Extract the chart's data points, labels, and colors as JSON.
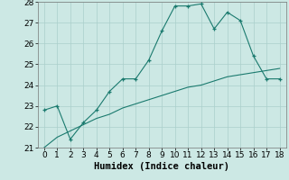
{
  "xlabel": "Humidex (Indice chaleur)",
  "x": [
    0,
    1,
    2,
    3,
    4,
    5,
    6,
    7,
    8,
    9,
    10,
    11,
    12,
    13,
    14,
    15,
    16,
    17,
    18
  ],
  "line1_y": [
    22.8,
    23.0,
    21.4,
    22.2,
    22.8,
    23.7,
    24.3,
    24.3,
    25.2,
    26.6,
    27.8,
    27.8,
    27.9,
    26.7,
    27.5,
    27.1,
    25.4,
    24.3,
    24.3
  ],
  "line2_y": [
    21.0,
    21.5,
    21.8,
    22.1,
    22.4,
    22.6,
    22.9,
    23.1,
    23.3,
    23.5,
    23.7,
    23.9,
    24.0,
    24.2,
    24.4,
    24.5,
    24.6,
    24.7,
    24.8
  ],
  "line_color": "#1a7a6e",
  "bg_color": "#cce8e4",
  "grid_color": "#aacfcb",
  "ylim": [
    21,
    28
  ],
  "yticks": [
    21,
    22,
    23,
    24,
    25,
    26,
    27,
    28
  ],
  "xlim": [
    -0.5,
    18.5
  ],
  "xticks": [
    0,
    1,
    2,
    3,
    4,
    5,
    6,
    7,
    8,
    9,
    10,
    11,
    12,
    13,
    14,
    15,
    16,
    17,
    18
  ],
  "tick_fontsize": 6.5,
  "label_fontsize": 7.5
}
